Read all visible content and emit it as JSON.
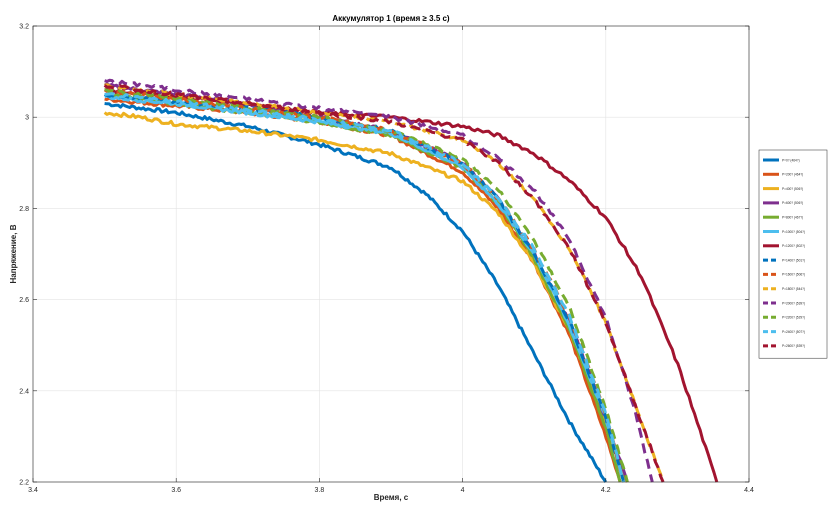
{
  "chart_data": {
    "type": "line",
    "title": "Аккумулятор 1 (время ≥ 3.5 с)",
    "xlabel": "Время, с",
    "ylabel": "Напряжение, В",
    "xlim": [
      3.4,
      4.4
    ],
    "ylim": [
      2.2,
      3.2
    ],
    "xticks": [
      3.4,
      3.6,
      3.8,
      4,
      4.2,
      4.4
    ],
    "xtick_labels": [
      "3.4",
      "3.6",
      "3.8",
      "4",
      "4.2",
      "4.4"
    ],
    "yticks": [
      2.2,
      2.4,
      2.6,
      2.8,
      3,
      3.2
    ],
    "ytick_labels": [
      "2.2",
      "2.4",
      "2.6",
      "2.8",
      "3",
      "3.2"
    ],
    "grid": true,
    "legend_position": "right",
    "series": [
      {
        "name": "P=0? (464?)",
        "color": "#0072BD",
        "dashed": false,
        "x": [
          3.5,
          3.6,
          3.7,
          3.8,
          3.9,
          3.95,
          4.0,
          4.05,
          4.1,
          4.15,
          4.2
        ],
        "y": [
          3.03,
          3.01,
          2.98,
          2.94,
          2.89,
          2.83,
          2.75,
          2.63,
          2.48,
          2.33,
          2.2
        ]
      },
      {
        "name": "P=200? (464?)",
        "color": "#D95319",
        "dashed": false,
        "x": [
          3.5,
          3.6,
          3.7,
          3.8,
          3.9,
          4.0,
          4.05,
          4.1,
          4.15,
          4.2,
          4.22
        ],
        "y": [
          3.04,
          3.025,
          3.01,
          2.99,
          2.96,
          2.88,
          2.8,
          2.68,
          2.52,
          2.3,
          2.2
        ]
      },
      {
        "name": "P=400? (506?)",
        "color": "#EDB120",
        "dashed": false,
        "x": [
          3.5,
          3.55,
          3.6,
          3.7,
          3.8,
          3.9,
          4.0,
          4.05,
          4.1,
          4.15,
          4.2,
          4.23
        ],
        "y": [
          3.01,
          3.0,
          2.985,
          2.97,
          2.95,
          2.92,
          2.86,
          2.79,
          2.68,
          2.53,
          2.33,
          2.2
        ]
      },
      {
        "name": "P=600? (506?)",
        "color": "#7E2F8E",
        "dashed": false,
        "x": [
          3.5,
          3.6,
          3.7,
          3.8,
          3.9,
          4.0,
          4.05,
          4.1,
          4.15,
          4.2,
          4.23
        ],
        "y": [
          3.07,
          3.05,
          3.03,
          3.0,
          2.97,
          2.9,
          2.82,
          2.7,
          2.55,
          2.34,
          2.2
        ]
      },
      {
        "name": "P=800? (467?)",
        "color": "#77AC30",
        "dashed": false,
        "x": [
          3.5,
          3.6,
          3.7,
          3.8,
          3.9,
          4.0,
          4.05,
          4.1,
          4.15,
          4.2,
          4.22
        ],
        "y": [
          3.05,
          3.03,
          3.01,
          2.99,
          2.96,
          2.89,
          2.81,
          2.69,
          2.53,
          2.32,
          2.2
        ]
      },
      {
        "name": "P=1000? (504?)",
        "color": "#4DBEEE",
        "dashed": false,
        "x": [
          3.5,
          3.6,
          3.7,
          3.8,
          3.9,
          4.0,
          4.05,
          4.1,
          4.15,
          4.2,
          4.225
        ],
        "y": [
          3.045,
          3.03,
          3.01,
          2.99,
          2.965,
          2.89,
          2.81,
          2.7,
          2.54,
          2.34,
          2.2
        ]
      },
      {
        "name": "P=1200? (502?)",
        "color": "#A2142F",
        "dashed": false,
        "x": [
          3.5,
          3.6,
          3.7,
          3.8,
          3.9,
          4.0,
          4.05,
          4.1,
          4.15,
          4.2,
          4.25,
          4.3,
          4.33,
          4.355
        ],
        "y": [
          3.06,
          3.045,
          3.03,
          3.01,
          3.0,
          2.98,
          2.96,
          2.92,
          2.86,
          2.78,
          2.65,
          2.46,
          2.32,
          2.2
        ]
      },
      {
        "name": "P=1400? (501?)",
        "color": "#0072BD",
        "dashed": true,
        "x": [
          3.5,
          3.6,
          3.7,
          3.8,
          3.9,
          4.0,
          4.05,
          4.1,
          4.15,
          4.2,
          4.225
        ],
        "y": [
          3.05,
          3.035,
          3.02,
          3.0,
          2.97,
          2.9,
          2.82,
          2.7,
          2.55,
          2.34,
          2.2
        ]
      },
      {
        "name": "P=1600? (506?)",
        "color": "#D95319",
        "dashed": true,
        "x": [
          3.5,
          3.6,
          3.7,
          3.8,
          3.9,
          4.0,
          4.05,
          4.1,
          4.15,
          4.2,
          4.225
        ],
        "y": [
          3.06,
          3.04,
          3.02,
          3.0,
          2.97,
          2.9,
          2.82,
          2.71,
          2.56,
          2.35,
          2.2
        ]
      },
      {
        "name": "P=1800? (544?)",
        "color": "#EDB120",
        "dashed": true,
        "x": [
          3.5,
          3.6,
          3.7,
          3.8,
          3.9,
          4.0,
          4.05,
          4.1,
          4.15,
          4.2,
          4.25,
          4.28
        ],
        "y": [
          3.07,
          3.05,
          3.03,
          3.01,
          2.99,
          2.95,
          2.9,
          2.82,
          2.71,
          2.55,
          2.33,
          2.2
        ]
      },
      {
        "name": "P=2000? (539?)",
        "color": "#7E2F8E",
        "dashed": true,
        "x": [
          3.5,
          3.6,
          3.7,
          3.8,
          3.9,
          4.0,
          4.05,
          4.1,
          4.15,
          4.2,
          4.24,
          4.265
        ],
        "y": [
          3.08,
          3.06,
          3.04,
          3.02,
          3.0,
          2.96,
          2.91,
          2.84,
          2.73,
          2.56,
          2.36,
          2.2
        ]
      },
      {
        "name": "P=2200? (529?)",
        "color": "#77AC30",
        "dashed": true,
        "x": [
          3.5,
          3.6,
          3.7,
          3.8,
          3.9,
          4.0,
          4.05,
          4.1,
          4.15,
          4.2,
          4.23
        ],
        "y": [
          3.06,
          3.04,
          3.02,
          3.0,
          2.97,
          2.91,
          2.84,
          2.73,
          2.58,
          2.36,
          2.2
        ]
      },
      {
        "name": "P=2400? (507?)",
        "color": "#4DBEEE",
        "dashed": true,
        "x": [
          3.5,
          3.6,
          3.7,
          3.8,
          3.9,
          4.0,
          4.05,
          4.1,
          4.15,
          4.2,
          4.225
        ],
        "y": [
          3.05,
          3.035,
          3.015,
          2.995,
          2.97,
          2.9,
          2.82,
          2.71,
          2.56,
          2.35,
          2.2
        ]
      },
      {
        "name": "P=2600? (539?)",
        "color": "#A2142F",
        "dashed": true,
        "x": [
          3.5,
          3.6,
          3.7,
          3.8,
          3.9,
          4.0,
          4.05,
          4.1,
          4.15,
          4.2,
          4.25,
          4.28
        ],
        "y": [
          3.07,
          3.05,
          3.03,
          3.01,
          2.99,
          2.95,
          2.9,
          2.82,
          2.71,
          2.55,
          2.33,
          2.2
        ]
      }
    ]
  }
}
